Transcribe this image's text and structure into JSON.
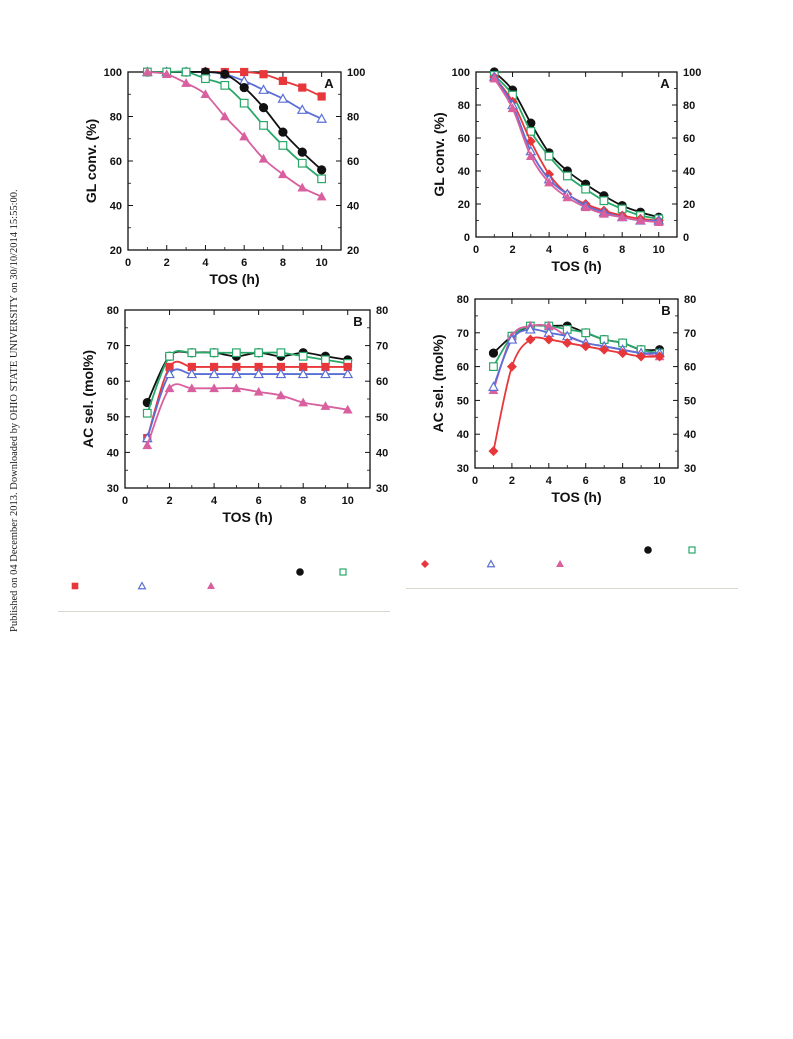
{
  "published_note": "Published on 04 December 2013. Downloaded by OHIO STATE UNIVERSITY on 30/10/2014 15:55:00.",
  "chart_data": [
    {
      "id": "left-A",
      "type": "line",
      "panel_label": "A",
      "xlabel": "TOS (h)",
      "ylabel": "GL conv. (%)",
      "xlim": [
        0,
        11
      ],
      "ylim": [
        20,
        100
      ],
      "x_ticks": [
        0,
        2,
        4,
        6,
        8,
        10
      ],
      "y_ticks": [
        20,
        40,
        60,
        80,
        100
      ],
      "right_axis_ticks": [
        20,
        40,
        60,
        80,
        100
      ],
      "x": [
        1,
        2,
        3,
        4,
        5,
        6,
        7,
        8,
        9,
        10
      ],
      "series": [
        {
          "marker": "square-filled",
          "color": "#e8373a",
          "values": [
            100,
            100,
            100,
            100,
            100,
            100,
            99,
            96,
            93,
            89
          ]
        },
        {
          "marker": "triangle-open",
          "color": "#5b6fd6",
          "values": [
            100,
            100,
            100,
            100,
            99,
            96,
            92,
            88,
            83,
            79
          ]
        },
        {
          "marker": "circle-filled",
          "color": "#111111",
          "values": [
            100,
            100,
            100,
            100,
            99,
            93,
            84,
            73,
            64,
            56
          ]
        },
        {
          "marker": "square-open",
          "color": "#2aa86a",
          "values": [
            100,
            100,
            100,
            97,
            94,
            86,
            76,
            67,
            59,
            52
          ]
        },
        {
          "marker": "triangle-filled",
          "color": "#d9609f",
          "values": [
            100,
            99,
            95,
            90,
            80,
            71,
            61,
            54,
            48,
            44
          ]
        }
      ]
    },
    {
      "id": "left-B",
      "type": "line",
      "panel_label": "B",
      "xlabel": "TOS (h)",
      "ylabel": "AC sel. (mol%)",
      "xlim": [
        0,
        11
      ],
      "ylim": [
        30,
        80
      ],
      "x_ticks": [
        0,
        2,
        4,
        6,
        8,
        10
      ],
      "y_ticks": [
        30,
        40,
        50,
        60,
        70,
        80
      ],
      "right_axis_ticks": [
        30,
        40,
        50,
        60,
        70,
        80
      ],
      "x": [
        1,
        2,
        3,
        4,
        5,
        6,
        7,
        8,
        9,
        10
      ],
      "series": [
        {
          "marker": "circle-filled",
          "color": "#111111",
          "values": [
            54,
            67,
            68,
            68,
            67,
            68,
            67,
            68,
            67,
            66
          ]
        },
        {
          "marker": "square-open",
          "color": "#2aa86a",
          "values": [
            51,
            67,
            68,
            68,
            68,
            68,
            68,
            67,
            66,
            65
          ]
        },
        {
          "marker": "square-filled",
          "color": "#e8373a",
          "values": [
            44,
            64,
            64,
            64,
            64,
            64,
            64,
            64,
            64,
            64
          ]
        },
        {
          "marker": "triangle-open",
          "color": "#5b6fd6",
          "values": [
            44,
            62,
            62,
            62,
            62,
            62,
            62,
            62,
            62,
            62
          ]
        },
        {
          "marker": "triangle-filled",
          "color": "#d9609f",
          "values": [
            42,
            58,
            58,
            58,
            58,
            57,
            56,
            54,
            53,
            52
          ]
        }
      ]
    },
    {
      "id": "right-A",
      "type": "line",
      "panel_label": "A",
      "xlabel": "TOS (h)",
      "ylabel": "GL conv. (%)",
      "xlim": [
        0,
        11
      ],
      "ylim": [
        0,
        100
      ],
      "x_ticks": [
        0,
        2,
        4,
        6,
        8,
        10
      ],
      "y_ticks": [
        0,
        20,
        40,
        60,
        80,
        100
      ],
      "right_axis_ticks": [
        0,
        20,
        40,
        60,
        80,
        100
      ],
      "x": [
        1,
        2,
        3,
        4,
        5,
        6,
        7,
        8,
        9,
        10
      ],
      "series": [
        {
          "marker": "circle-filled",
          "color": "#111111",
          "values": [
            100,
            89,
            69,
            51,
            40,
            32,
            25,
            19,
            15,
            12
          ]
        },
        {
          "marker": "square-open",
          "color": "#2aa86a",
          "values": [
            98,
            86,
            64,
            49,
            37,
            29,
            22,
            17,
            13,
            11
          ]
        },
        {
          "marker": "diamond-filled",
          "color": "#e8373a",
          "values": [
            97,
            82,
            58,
            38,
            26,
            20,
            16,
            13,
            11,
            10
          ]
        },
        {
          "marker": "triangle-open",
          "color": "#5b6fd6",
          "values": [
            97,
            80,
            52,
            35,
            26,
            19,
            15,
            12,
            10,
            10
          ]
        },
        {
          "marker": "triangle-filled",
          "color": "#d9609f",
          "values": [
            96,
            78,
            49,
            33,
            24,
            18,
            14,
            12,
            10,
            9
          ]
        }
      ]
    },
    {
      "id": "right-B",
      "type": "line",
      "panel_label": "B",
      "xlabel": "TOS (h)",
      "ylabel": "AC sel. (mol%)",
      "xlim": [
        0,
        11
      ],
      "ylim": [
        30,
        80
      ],
      "x_ticks": [
        0,
        2,
        4,
        6,
        8,
        10
      ],
      "y_ticks": [
        30,
        40,
        50,
        60,
        70,
        80
      ],
      "right_axis_ticks": [
        30,
        40,
        50,
        60,
        70,
        80
      ],
      "x": [
        1,
        2,
        3,
        4,
        5,
        6,
        7,
        8,
        9,
        10
      ],
      "series": [
        {
          "marker": "circle-filled",
          "color": "#111111",
          "values": [
            64,
            69,
            72,
            72,
            72,
            70,
            68,
            67,
            65,
            65
          ]
        },
        {
          "marker": "square-open",
          "color": "#2aa86a",
          "values": [
            60,
            69,
            72,
            72,
            71,
            70,
            68,
            67,
            65,
            64
          ]
        },
        {
          "marker": "triangle-filled",
          "color": "#d9609f",
          "values": [
            53,
            69,
            72,
            72,
            69,
            67,
            66,
            65,
            64,
            63
          ]
        },
        {
          "marker": "triangle-open",
          "color": "#5b6fd6",
          "values": [
            54,
            68,
            71,
            70,
            69,
            67,
            66,
            65,
            64,
            64
          ]
        },
        {
          "marker": "diamond-filled",
          "color": "#e8373a",
          "values": [
            35,
            60,
            68,
            68,
            67,
            66,
            65,
            64,
            63,
            63
          ]
        }
      ]
    }
  ],
  "legend_left": [
    {
      "marker": "circle-filled",
      "color": "#111111"
    },
    {
      "marker": "square-open",
      "color": "#2aa86a"
    },
    {
      "marker": "square-filled",
      "color": "#e8373a"
    },
    {
      "marker": "triangle-open",
      "color": "#5b6fd6"
    },
    {
      "marker": "triangle-filled",
      "color": "#d9609f"
    }
  ],
  "legend_right": [
    {
      "marker": "circle-filled",
      "color": "#111111"
    },
    {
      "marker": "square-open",
      "color": "#2aa86a"
    },
    {
      "marker": "diamond-filled",
      "color": "#e8373a"
    },
    {
      "marker": "triangle-open",
      "color": "#5b6fd6"
    },
    {
      "marker": "triangle-filled",
      "color": "#d9609f"
    }
  ]
}
